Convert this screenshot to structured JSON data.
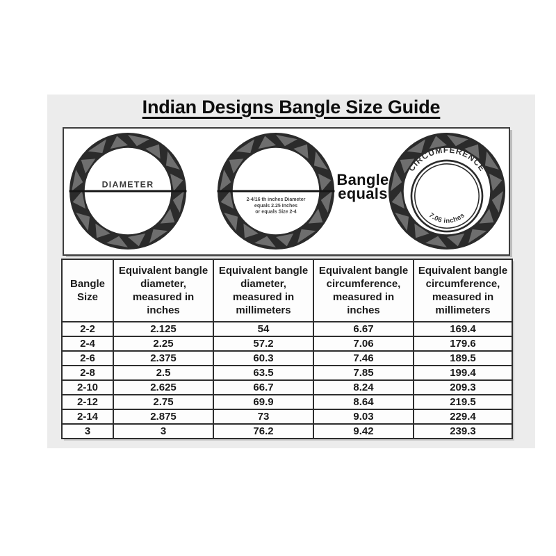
{
  "page": {
    "title": "Indian Designs Bangle Size Guide"
  },
  "illustration": {
    "bangle_diameter": {
      "label": "DIAMETER"
    },
    "bangle_example": {
      "note_lines": [
        "2-4/16 th inches Diameter",
        "equals 2.25 Inches",
        "or equals Size 2-4"
      ]
    },
    "equals_text": {
      "line1": "Bangle",
      "line2": "equals"
    },
    "bangle_circumference": {
      "top_label": "CIRCUMFERENCE",
      "bottom_label": "7.06 inches"
    }
  },
  "table": {
    "headers": [
      "Bangle Size",
      "Equivalent bangle diameter, measured in inches",
      "Equivalent bangle diameter, measured in millimeters",
      "Equivalent bangle circumference, measured in inches",
      "Equivalent bangle circumference, measured in millimeters"
    ],
    "rows": [
      [
        "2-2",
        "2.125",
        "54",
        "6.67",
        "169.4"
      ],
      [
        "2-4",
        "2.25",
        "57.2",
        "7.06",
        "179.6"
      ],
      [
        "2-6",
        "2.375",
        "60.3",
        "7.46",
        "189.5"
      ],
      [
        "2-8",
        "2.5",
        "63.5",
        "7.85",
        "199.4"
      ],
      [
        "2-10",
        "2.625",
        "66.7",
        "8.24",
        "209.3"
      ],
      [
        "2-12",
        "2.75",
        "69.9",
        "8.64",
        "219.5"
      ],
      [
        "2-14",
        "2.875",
        "73",
        "9.03",
        "229.4"
      ],
      [
        "3",
        "3",
        "76.2",
        "9.42",
        "239.3"
      ]
    ]
  },
  "colors": {
    "card_bg": "#ececec",
    "ring_dark": "#2b2b2b",
    "ring_gray": "#6e6e6e",
    "border": "#2e2e2e",
    "text": "#1a1a1a"
  }
}
